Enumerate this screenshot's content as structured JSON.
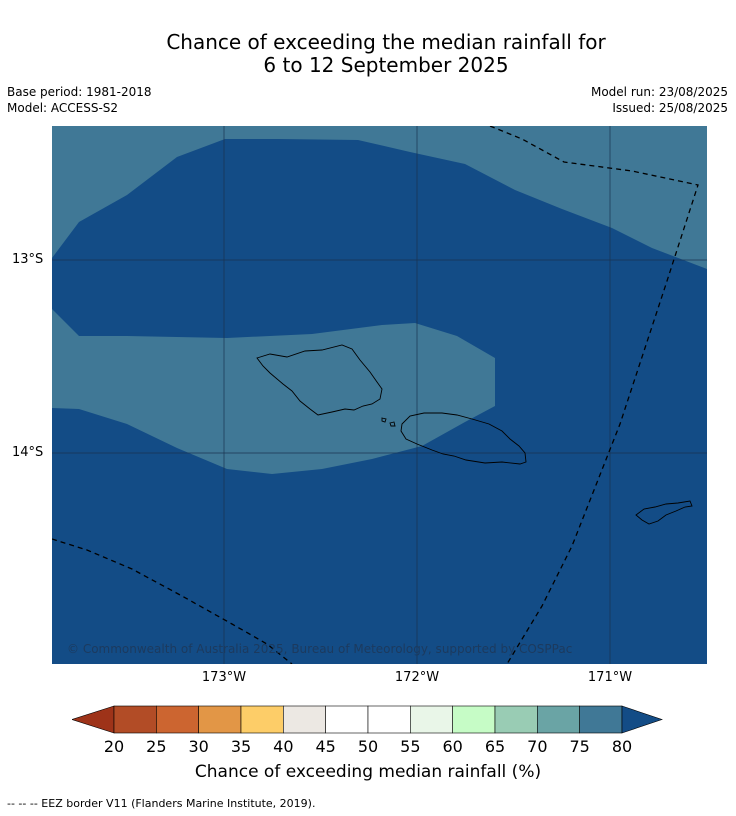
{
  "title": {
    "line1": "Chance of exceeding the median rainfall for",
    "line2": "6 to 12 September 2025"
  },
  "meta": {
    "base_period": "Base period: 1981-2018",
    "model": "Model: ACCESS-S2",
    "model_run": "Model run: 23/08/2025",
    "issued": "Issued: 25/08/2025"
  },
  "map": {
    "lat_labels": [
      "13°S",
      "14°S"
    ],
    "lon_labels": [
      "173°W",
      "172°W",
      "171°W"
    ],
    "copyright": "© Commonwealth of Australia 2025, Bureau of Meteorology, supported by COSPPac",
    "colors": {
      "band_75_80": "#407896",
      "band_above_80": "#134c86",
      "grid": "#1a3350",
      "coast": "#000000"
    }
  },
  "colorbar": {
    "ticks": [
      "20",
      "25",
      "30",
      "35",
      "40",
      "45",
      "50",
      "55",
      "60",
      "65",
      "70",
      "75",
      "80"
    ],
    "colors": [
      "#9e3319",
      "#b24c26",
      "#cc6530",
      "#e29646",
      "#fdcd68",
      "#ece8e3",
      "#ffffff",
      "#ffffff",
      "#e9f6e8",
      "#c6fcc6",
      "#99ccb4",
      "#6aa4a5",
      "#407896",
      "#134c86"
    ],
    "label": "Chance of exceeding median rainfall (%)"
  },
  "footnote": "--  --  -- EEZ border V11 (Flanders Marine Institute, 2019)."
}
